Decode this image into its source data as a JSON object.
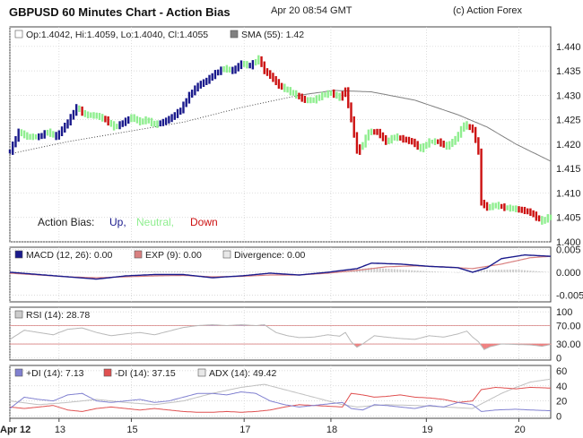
{
  "header": {
    "title": "GBPUSD 60 Minutes Chart - Action Bias",
    "timestamp": "Apr 20 08:54 GMT",
    "copyright": "(c) Action Forex"
  },
  "colors": {
    "up": "#1a1a8c",
    "neutral": "#90ee90",
    "down": "#cc1111",
    "sma": "#808080",
    "macd": "#1a1a8c",
    "exp": "#d98080",
    "divergence": "#cccccc",
    "rsi": "#8080d0",
    "plus_di": "#8080d0",
    "minus_di": "#e05050",
    "adx": "#c0c0c0",
    "grid": "#cfcfcf",
    "panel_border": "#444444"
  },
  "chart_data": [
    {
      "type": "candlestick",
      "panel": "price",
      "info_line": {
        "ohlc": "Op:1.4042, Hi:1.4059, Lo:1.4040, Cl:1.4055",
        "sma": "SMA (55): 1.42"
      },
      "legend": {
        "label": "Action Bias:",
        "up": "Up,",
        "neutral": "Neutral,",
        "down": "Down"
      },
      "ylim": [
        1.4,
        1.444
      ],
      "yticks": [
        "1.440",
        "1.435",
        "1.430",
        "1.425",
        "1.420",
        "1.415",
        "1.410",
        "1.405",
        "1.400"
      ],
      "ytick_values": [
        1.44,
        1.435,
        1.43,
        1.425,
        1.42,
        1.415,
        1.41,
        1.405,
        1.4
      ],
      "x_range": [
        0,
        187
      ],
      "x_ticks": [
        {
          "label": "Apr 12",
          "x": 0
        },
        {
          "label": "13",
          "x": 17
        },
        {
          "label": "15",
          "x": 42
        },
        {
          "label": "17",
          "x": 81
        },
        {
          "label": "18",
          "x": 111
        },
        {
          "label": "19",
          "x": 144
        },
        {
          "label": "20",
          "x": 176
        }
      ],
      "close_anchors": [
        [
          0,
          1.4185
        ],
        [
          3,
          1.4225
        ],
        [
          6,
          1.4215
        ],
        [
          10,
          1.4215
        ],
        [
          13,
          1.4225
        ],
        [
          16,
          1.4215
        ],
        [
          20,
          1.4245
        ],
        [
          23,
          1.4275
        ],
        [
          26,
          1.426
        ],
        [
          30,
          1.4258
        ],
        [
          33,
          1.425
        ],
        [
          36,
          1.4235
        ],
        [
          38,
          1.424
        ],
        [
          42,
          1.4255
        ],
        [
          45,
          1.4245
        ],
        [
          47,
          1.425
        ],
        [
          50,
          1.424
        ],
        [
          53,
          1.4245
        ],
        [
          56,
          1.4255
        ],
        [
          59,
          1.427
        ],
        [
          62,
          1.43
        ],
        [
          65,
          1.432
        ],
        [
          68,
          1.433
        ],
        [
          71,
          1.4345
        ],
        [
          74,
          1.4355
        ],
        [
          77,
          1.435
        ],
        [
          80,
          1.4365
        ],
        [
          83,
          1.436
        ],
        [
          86,
          1.4375
        ],
        [
          88,
          1.435
        ],
        [
          90,
          1.434
        ],
        [
          93,
          1.432
        ],
        [
          96,
          1.431
        ],
        [
          99,
          1.43
        ],
        [
          102,
          1.429
        ],
        [
          105,
          1.429
        ],
        [
          108,
          1.43
        ],
        [
          111,
          1.4305
        ],
        [
          114,
          1.4295
        ],
        [
          116,
          1.431
        ],
        [
          117,
          1.428
        ],
        [
          119,
          1.422
        ],
        [
          120,
          1.4185
        ],
        [
          122,
          1.42
        ],
        [
          124,
          1.4225
        ],
        [
          127,
          1.4225
        ],
        [
          130,
          1.4205
        ],
        [
          133,
          1.4215
        ],
        [
          136,
          1.421
        ],
        [
          139,
          1.4205
        ],
        [
          142,
          1.419
        ],
        [
          145,
          1.4205
        ],
        [
          148,
          1.4205
        ],
        [
          151,
          1.4195
        ],
        [
          154,
          1.421
        ],
        [
          157,
          1.424
        ],
        [
          160,
          1.423
        ],
        [
          162,
          1.4185
        ],
        [
          163,
          1.408
        ],
        [
          165,
          1.407
        ],
        [
          168,
          1.4075
        ],
        [
          171,
          1.407
        ],
        [
          174,
          1.4068
        ],
        [
          177,
          1.4065
        ],
        [
          180,
          1.406
        ],
        [
          182,
          1.405
        ],
        [
          184,
          1.4042
        ],
        [
          186,
          1.405
        ]
      ],
      "sma_anchors": [
        [
          0,
          1.418
        ],
        [
          20,
          1.4205
        ],
        [
          40,
          1.4225
        ],
        [
          60,
          1.4245
        ],
        [
          80,
          1.4275
        ],
        [
          100,
          1.43
        ],
        [
          112,
          1.431
        ],
        [
          125,
          1.4307
        ],
        [
          140,
          1.429
        ],
        [
          155,
          1.426
        ],
        [
          165,
          1.4235
        ],
        [
          175,
          1.42
        ],
        [
          187,
          1.4165
        ]
      ]
    },
    {
      "type": "line",
      "panel": "macd",
      "legend": [
        "MACD (12, 26): 0.00",
        "EXP (9): 0.00",
        "Divergence: 0.00"
      ],
      "ylim": [
        -0.0065,
        0.0055
      ],
      "yticks": [
        "0.005",
        "0.000",
        "-0.005"
      ],
      "ytick_values": [
        0.005,
        0,
        -0.005
      ],
      "macd_anchors": [
        [
          0,
          0.0
        ],
        [
          10,
          -0.0005
        ],
        [
          20,
          -0.001
        ],
        [
          30,
          -0.0015
        ],
        [
          40,
          -0.0008
        ],
        [
          50,
          -0.0005
        ],
        [
          60,
          -0.0005
        ],
        [
          70,
          -0.0012
        ],
        [
          80,
          -0.0008
        ],
        [
          90,
          -0.0002
        ],
        [
          100,
          -0.0006
        ],
        [
          110,
          0.0
        ],
        [
          120,
          0.0008
        ],
        [
          125,
          0.002
        ],
        [
          135,
          0.0018
        ],
        [
          145,
          0.0013
        ],
        [
          155,
          0.001
        ],
        [
          160,
          0.0
        ],
        [
          165,
          0.001
        ],
        [
          170,
          0.003
        ],
        [
          178,
          0.0038
        ],
        [
          187,
          0.0035
        ]
      ],
      "exp_anchors": [
        [
          0,
          -0.0002
        ],
        [
          10,
          -0.0006
        ],
        [
          20,
          -0.001
        ],
        [
          30,
          -0.0012
        ],
        [
          40,
          -0.001
        ],
        [
          50,
          -0.0008
        ],
        [
          60,
          -0.0007
        ],
        [
          70,
          -0.001
        ],
        [
          80,
          -0.0009
        ],
        [
          90,
          -0.0006
        ],
        [
          100,
          -0.0006
        ],
        [
          110,
          -0.0002
        ],
        [
          120,
          0.0004
        ],
        [
          130,
          0.0012
        ],
        [
          140,
          0.0014
        ],
        [
          150,
          0.0012
        ],
        [
          160,
          0.0008
        ],
        [
          170,
          0.0018
        ],
        [
          180,
          0.0032
        ],
        [
          187,
          0.0035
        ]
      ],
      "divergence_anchors": [
        [
          0,
          0.0002
        ],
        [
          20,
          0.0
        ],
        [
          40,
          0.0002
        ],
        [
          60,
          0.0002
        ],
        [
          80,
          0.0001
        ],
        [
          100,
          0.0
        ],
        [
          115,
          0.0003
        ],
        [
          125,
          0.001
        ],
        [
          140,
          0.0004
        ],
        [
          155,
          -0.0001
        ],
        [
          165,
          0.0005
        ],
        [
          175,
          0.0006
        ],
        [
          187,
          0.0
        ]
      ]
    },
    {
      "type": "line",
      "panel": "rsi",
      "legend": [
        "RSI (14): 28.78"
      ],
      "ylim": [
        -5,
        110
      ],
      "yticks": [
        "100",
        "70.00",
        "30.00",
        "0"
      ],
      "ytick_values": [
        100,
        70,
        30,
        0
      ],
      "reference_lines": [
        70,
        30
      ],
      "rsi_anchors": [
        [
          0,
          40
        ],
        [
          5,
          60
        ],
        [
          10,
          55
        ],
        [
          15,
          50
        ],
        [
          20,
          62
        ],
        [
          25,
          65
        ],
        [
          30,
          55
        ],
        [
          35,
          48
        ],
        [
          40,
          52
        ],
        [
          45,
          55
        ],
        [
          50,
          50
        ],
        [
          55,
          58
        ],
        [
          60,
          66
        ],
        [
          65,
          70
        ],
        [
          70,
          72
        ],
        [
          75,
          70
        ],
        [
          80,
          72
        ],
        [
          85,
          70
        ],
        [
          88,
          72
        ],
        [
          92,
          55
        ],
        [
          96,
          48
        ],
        [
          100,
          44
        ],
        [
          105,
          45
        ],
        [
          110,
          50
        ],
        [
          114,
          47
        ],
        [
          116,
          55
        ],
        [
          118,
          35
        ],
        [
          120,
          23
        ],
        [
          122,
          30
        ],
        [
          126,
          48
        ],
        [
          130,
          45
        ],
        [
          135,
          42
        ],
        [
          140,
          40
        ],
        [
          145,
          48
        ],
        [
          150,
          45
        ],
        [
          155,
          52
        ],
        [
          158,
          58
        ],
        [
          160,
          45
        ],
        [
          162,
          35
        ],
        [
          164,
          18
        ],
        [
          166,
          24
        ],
        [
          170,
          30
        ],
        [
          175,
          29
        ],
        [
          180,
          28
        ],
        [
          184,
          25
        ],
        [
          187,
          29
        ]
      ]
    },
    {
      "type": "line",
      "panel": "dmi",
      "legend": [
        "+DI (14): 7.13",
        "-DI (14): 37.15",
        "ADX (14): 49.42"
      ],
      "ylim": [
        -3,
        67
      ],
      "yticks": [
        "60",
        "40",
        "20",
        "0"
      ],
      "ytick_values": [
        60,
        40,
        20,
        0
      ],
      "plus_di_anchors": [
        [
          0,
          10
        ],
        [
          5,
          25
        ],
        [
          10,
          22
        ],
        [
          15,
          20
        ],
        [
          20,
          28
        ],
        [
          25,
          30
        ],
        [
          30,
          20
        ],
        [
          35,
          18
        ],
        [
          40,
          20
        ],
        [
          45,
          22
        ],
        [
          50,
          18
        ],
        [
          55,
          20
        ],
        [
          60,
          25
        ],
        [
          65,
          30
        ],
        [
          70,
          30
        ],
        [
          75,
          28
        ],
        [
          80,
          32
        ],
        [
          85,
          30
        ],
        [
          90,
          20
        ],
        [
          95,
          15
        ],
        [
          100,
          12
        ],
        [
          105,
          14
        ],
        [
          110,
          16
        ],
        [
          115,
          18
        ],
        [
          118,
          10
        ],
        [
          122,
          8
        ],
        [
          126,
          15
        ],
        [
          130,
          14
        ],
        [
          135,
          12
        ],
        [
          140,
          10
        ],
        [
          145,
          14
        ],
        [
          150,
          12
        ],
        [
          155,
          18
        ],
        [
          160,
          15
        ],
        [
          163,
          6
        ],
        [
          168,
          8
        ],
        [
          175,
          9
        ],
        [
          180,
          8
        ],
        [
          187,
          7
        ]
      ],
      "minus_di_anchors": [
        [
          0,
          12
        ],
        [
          5,
          10
        ],
        [
          10,
          12
        ],
        [
          15,
          14
        ],
        [
          20,
          8
        ],
        [
          25,
          6
        ],
        [
          30,
          10
        ],
        [
          35,
          12
        ],
        [
          40,
          10
        ],
        [
          45,
          8
        ],
        [
          50,
          10
        ],
        [
          55,
          8
        ],
        [
          60,
          6
        ],
        [
          65,
          5
        ],
        [
          70,
          5
        ],
        [
          75,
          6
        ],
        [
          80,
          5
        ],
        [
          85,
          6
        ],
        [
          90,
          8
        ],
        [
          95,
          12
        ],
        [
          100,
          15
        ],
        [
          105,
          14
        ],
        [
          110,
          13
        ],
        [
          115,
          12
        ],
        [
          118,
          30
        ],
        [
          122,
          28
        ],
        [
          126,
          25
        ],
        [
          130,
          26
        ],
        [
          135,
          28
        ],
        [
          140,
          25
        ],
        [
          145,
          24
        ],
        [
          150,
          22
        ],
        [
          155,
          18
        ],
        [
          160,
          20
        ],
        [
          163,
          35
        ],
        [
          168,
          38
        ],
        [
          175,
          36
        ],
        [
          180,
          38
        ],
        [
          187,
          37
        ]
      ],
      "adx_anchors": [
        [
          0,
          20
        ],
        [
          10,
          15
        ],
        [
          20,
          18
        ],
        [
          30,
          22
        ],
        [
          40,
          18
        ],
        [
          50,
          15
        ],
        [
          60,
          20
        ],
        [
          70,
          30
        ],
        [
          80,
          38
        ],
        [
          88,
          42
        ],
        [
          95,
          35
        ],
        [
          105,
          25
        ],
        [
          115,
          15
        ],
        [
          120,
          12
        ],
        [
          130,
          15
        ],
        [
          140,
          14
        ],
        [
          150,
          12
        ],
        [
          160,
          10
        ],
        [
          165,
          20
        ],
        [
          170,
          30
        ],
        [
          175,
          38
        ],
        [
          180,
          45
        ],
        [
          187,
          49
        ]
      ]
    }
  ]
}
